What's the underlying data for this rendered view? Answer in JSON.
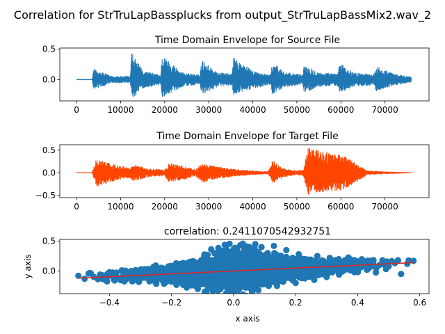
{
  "figure": {
    "suptitle": "Correlation for StrTruLapBassplucks from output_StrTruLapBassMix2.wav_2"
  },
  "chart_data": [
    {
      "type": "line",
      "title": "Time Domain Envelope for Source File",
      "xlabel": "",
      "ylabel": "",
      "xlim": [
        -3800,
        80000
      ],
      "ylim": [
        -0.35,
        0.52
      ],
      "xticks": [
        0,
        10000,
        20000,
        30000,
        40000,
        50000,
        60000,
        70000
      ],
      "yticks": [
        0.5,
        0.0
      ],
      "ytick_labels": [
        "0.5",
        "0.0"
      ],
      "color": "#1f77b4",
      "envelope": {
        "x": [
          0,
          3500,
          3900,
          8000,
          12200,
          12500,
          15000,
          19100,
          19400,
          24000,
          28000,
          28400,
          32000,
          35300,
          35600,
          40000,
          44000,
          44400,
          47500,
          51300,
          51700,
          55000,
          59200,
          59600,
          63000,
          67600,
          68000,
          72000,
          76000
        ],
        "max": [
          0.0,
          0.0,
          0.18,
          0.06,
          0.06,
          0.45,
          0.15,
          0.08,
          0.41,
          0.12,
          0.08,
          0.33,
          0.12,
          0.1,
          0.37,
          0.15,
          0.08,
          0.29,
          0.12,
          0.09,
          0.26,
          0.12,
          0.1,
          0.27,
          0.12,
          0.09,
          0.23,
          0.1,
          0.05
        ],
        "min": [
          0.0,
          0.0,
          -0.18,
          -0.06,
          -0.06,
          -0.33,
          -0.15,
          -0.08,
          -0.3,
          -0.12,
          -0.08,
          -0.26,
          -0.12,
          -0.1,
          -0.26,
          -0.15,
          -0.08,
          -0.24,
          -0.12,
          -0.09,
          -0.22,
          -0.12,
          -0.1,
          -0.22,
          -0.12,
          -0.09,
          -0.2,
          -0.1,
          -0.05
        ]
      }
    },
    {
      "type": "line",
      "title": "Time Domain Envelope for Target File",
      "xlabel": "",
      "ylabel": "",
      "xlim": [
        -3800,
        80000
      ],
      "ylim": [
        -0.55,
        0.62
      ],
      "xticks": [
        0,
        10000,
        20000,
        30000,
        40000,
        50000,
        60000,
        70000
      ],
      "yticks": [
        0.5,
        0.0,
        -0.5
      ],
      "ytick_labels": [
        "0.5",
        "0.0",
        "−0.5"
      ],
      "color": "#ff4500",
      "envelope": {
        "x": [
          0,
          3500,
          4500,
          8000,
          12000,
          13000,
          16000,
          20000,
          21000,
          24000,
          27000,
          28500,
          32000,
          36000,
          40000,
          43500,
          44500,
          47000,
          50000,
          51500,
          52500,
          56000,
          60000,
          62000,
          66000,
          70000,
          76000
        ],
        "max": [
          0.0,
          0.0,
          0.32,
          0.2,
          0.12,
          0.2,
          0.1,
          0.07,
          0.22,
          0.16,
          0.08,
          0.22,
          0.14,
          0.08,
          0.05,
          0.03,
          0.28,
          0.1,
          0.05,
          0.08,
          0.55,
          0.48,
          0.4,
          0.3,
          0.05,
          0.03,
          0.01
        ],
        "min": [
          0.0,
          0.0,
          -0.32,
          -0.2,
          -0.12,
          -0.2,
          -0.1,
          -0.07,
          -0.22,
          -0.16,
          -0.08,
          -0.22,
          -0.14,
          -0.08,
          -0.05,
          -0.03,
          -0.24,
          -0.1,
          -0.05,
          -0.08,
          -0.5,
          -0.44,
          -0.4,
          -0.3,
          -0.05,
          -0.03,
          -0.01
        ]
      }
    },
    {
      "type": "scatter",
      "title": "correlation: 0.2411070542932751",
      "xlabel": "x axis",
      "ylabel": "y axis",
      "xlim": [
        -0.56,
        0.63
      ],
      "ylim": [
        -0.38,
        0.53
      ],
      "xticks": [
        -0.4,
        -0.2,
        0.0,
        0.2,
        0.4,
        0.6
      ],
      "xtick_labels": [
        "−0.4",
        "−0.2",
        "0.0",
        "0.2",
        "0.4",
        "0.6"
      ],
      "yticks": [
        0.5,
        0.0
      ],
      "ytick_labels": [
        "0.5",
        "0.0"
      ],
      "color": "#1f77b4",
      "fit_color": "#d62728",
      "fit_line": {
        "x": [
          -0.5,
          0.58
        ],
        "y": [
          -0.12,
          0.14
        ]
      },
      "points": [
        [
          -0.5,
          -0.08
        ],
        [
          -0.48,
          -0.13
        ],
        [
          -0.46,
          -0.04
        ],
        [
          -0.45,
          -0.1
        ],
        [
          -0.43,
          -0.06
        ],
        [
          -0.42,
          -0.14
        ],
        [
          -0.4,
          -0.02
        ],
        [
          -0.39,
          -0.09
        ],
        [
          -0.38,
          -0.05
        ],
        [
          -0.37,
          -0.12
        ],
        [
          -0.36,
          0.01
        ],
        [
          -0.35,
          -0.07
        ],
        [
          -0.34,
          -0.1
        ],
        [
          -0.33,
          0.0
        ],
        [
          -0.32,
          -0.15
        ],
        [
          -0.31,
          -0.03
        ],
        [
          -0.3,
          0.02
        ],
        [
          -0.29,
          -0.11
        ],
        [
          -0.28,
          0.03
        ],
        [
          -0.27,
          -0.16
        ],
        [
          -0.26,
          -0.02
        ],
        [
          -0.25,
          0.04
        ],
        [
          -0.24,
          -0.13
        ],
        [
          -0.23,
          0.05
        ],
        [
          -0.22,
          -0.08
        ],
        [
          -0.21,
          0.06
        ],
        [
          -0.2,
          -0.18
        ],
        [
          -0.19,
          0.03
        ],
        [
          -0.18,
          -0.14
        ],
        [
          -0.17,
          0.07
        ],
        [
          -0.16,
          -0.09
        ],
        [
          -0.15,
          0.08
        ],
        [
          -0.14,
          -0.2
        ],
        [
          -0.13,
          0.02
        ],
        [
          -0.12,
          -0.12
        ],
        [
          -0.11,
          0.1
        ],
        [
          -0.1,
          -0.22
        ],
        [
          -0.09,
          0.05
        ],
        [
          -0.08,
          -0.15
        ],
        [
          -0.07,
          0.12
        ],
        [
          -0.06,
          -0.25
        ],
        [
          -0.05,
          0.15
        ],
        [
          -0.04,
          -0.1
        ],
        [
          -0.03,
          0.2
        ],
        [
          -0.02,
          -0.3
        ],
        [
          -0.01,
          0.18
        ],
        [
          0.0,
          -0.35
        ],
        [
          0.01,
          0.25
        ],
        [
          0.02,
          -0.2
        ],
        [
          0.03,
          0.3
        ],
        [
          0.04,
          -0.28
        ],
        [
          0.05,
          0.35
        ],
        [
          0.06,
          -0.15
        ],
        [
          0.07,
          0.45
        ],
        [
          0.08,
          -0.32
        ],
        [
          0.09,
          0.4
        ],
        [
          0.1,
          -0.22
        ],
        [
          0.11,
          0.3
        ],
        [
          0.12,
          -0.1
        ],
        [
          0.13,
          0.42
        ],
        [
          0.14,
          -0.25
        ],
        [
          0.15,
          0.25
        ],
        [
          0.16,
          -0.18
        ],
        [
          0.17,
          0.35
        ],
        [
          0.18,
          -0.08
        ],
        [
          0.19,
          0.22
        ],
        [
          0.2,
          -0.2
        ],
        [
          0.21,
          0.28
        ],
        [
          0.22,
          -0.12
        ],
        [
          0.23,
          0.2
        ],
        [
          0.24,
          -0.05
        ],
        [
          0.25,
          0.18
        ],
        [
          0.26,
          -0.15
        ],
        [
          0.27,
          0.25
        ],
        [
          0.28,
          -0.02
        ],
        [
          0.29,
          0.15
        ],
        [
          0.3,
          -0.1
        ],
        [
          0.31,
          0.22
        ],
        [
          0.32,
          0.02
        ],
        [
          0.33,
          0.14
        ],
        [
          0.34,
          -0.06
        ],
        [
          0.35,
          0.12
        ],
        [
          0.36,
          0.18
        ],
        [
          0.37,
          0.04
        ],
        [
          0.38,
          0.1
        ],
        [
          0.39,
          -0.02
        ],
        [
          0.4,
          0.16
        ],
        [
          0.41,
          0.06
        ],
        [
          0.42,
          0.12
        ],
        [
          0.43,
          0.02
        ],
        [
          0.44,
          0.08
        ],
        [
          0.45,
          0.14
        ],
        [
          0.46,
          0.05
        ],
        [
          0.47,
          0.1
        ],
        [
          0.48,
          0.18
        ],
        [
          0.5,
          0.08
        ],
        [
          0.52,
          0.13
        ],
        [
          0.53,
          0.18
        ],
        [
          0.54,
          -0.05
        ],
        [
          0.56,
          0.12
        ],
        [
          0.58,
          0.17
        ]
      ]
    }
  ]
}
